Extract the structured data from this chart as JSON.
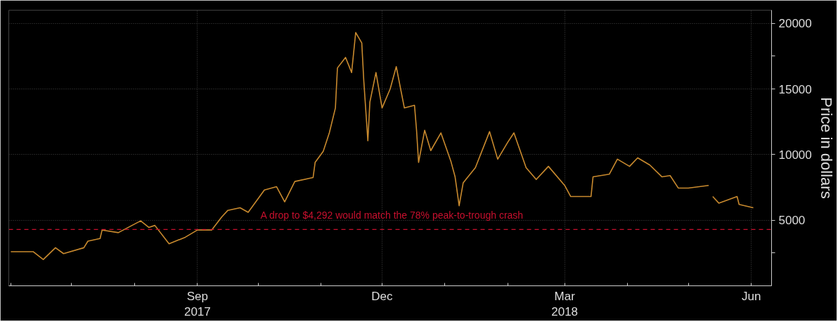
{
  "chart_data": {
    "type": "line",
    "ylabel": "Price in dollars",
    "x": [
      "2017-06-01",
      "2017-06-12",
      "2017-06-17",
      "2017-06-23",
      "2017-06-27",
      "2017-07-07",
      "2017-07-09",
      "2017-07-15",
      "2017-07-16",
      "2017-07-24",
      "2017-08-04",
      "2017-08-08",
      "2017-08-11",
      "2017-08-18",
      "2017-08-26",
      "2017-09-01",
      "2017-09-08",
      "2017-09-13",
      "2017-09-16",
      "2017-09-22",
      "2017-09-26",
      "2017-10-04",
      "2017-10-10",
      "2017-10-14",
      "2017-10-19",
      "2017-10-28",
      "2017-10-29",
      "2017-11-02",
      "2017-11-05",
      "2017-11-08",
      "2017-11-09",
      "2017-11-13",
      "2017-11-16",
      "2017-11-18",
      "2017-11-21",
      "2017-11-22",
      "2017-11-24",
      "2017-11-25",
      "2017-11-28",
      "2017-12-01",
      "2017-12-05",
      "2017-12-08",
      "2017-12-12",
      "2017-12-17",
      "2017-12-18",
      "2017-12-19",
      "2017-12-22",
      "2017-12-25",
      "2017-12-30",
      "2018-01-04",
      "2018-01-06",
      "2018-01-08",
      "2018-01-10",
      "2018-01-16",
      "2018-01-23",
      "2018-01-27",
      "2018-02-01",
      "2018-02-04",
      "2018-02-10",
      "2018-02-15",
      "2018-02-21",
      "2018-03-01",
      "2018-03-04",
      "2018-03-10",
      "2018-03-14",
      "2018-03-15",
      "2018-03-23",
      "2018-03-27",
      "2018-04-02",
      "2018-04-06",
      "2018-04-12",
      "2018-04-18",
      "2018-04-22",
      "2018-04-26",
      "2018-05-01",
      "2018-05-11",
      "2018-05-12",
      "2018-05-13",
      "2018-05-16",
      "2018-05-25",
      "2018-05-26",
      "2018-06-02"
    ],
    "series": [
      {
        "color": "#c98a2e",
        "values": [
          2600,
          2600,
          2000,
          2900,
          2450,
          2900,
          3400,
          3600,
          4250,
          4050,
          4950,
          4450,
          4600,
          3200,
          3700,
          4250,
          4250,
          5250,
          5750,
          5950,
          5600,
          7300,
          7550,
          6400,
          7950,
          8250,
          9400,
          10250,
          11650,
          13550,
          16600,
          17400,
          16250,
          19300,
          18500,
          15600,
          11050,
          14000,
          16250,
          13550,
          15000,
          16700,
          13550,
          13750,
          11850,
          9400,
          11850,
          10300,
          11650,
          9450,
          8300,
          6100,
          7850,
          9000,
          11750,
          9650,
          10950,
          11650,
          9000,
          8100,
          9100,
          7650,
          6800,
          6800,
          6800,
          8300,
          8500,
          9650,
          9100,
          9750,
          9200,
          8300,
          8400,
          7450,
          7450,
          7650,
          null,
          6800,
          6300,
          6800,
          6200,
          5950
        ]
      }
    ],
    "xlim": [
      "2017-05-31",
      "2018-06-11"
    ],
    "xticks": [
      {
        "value": "2017-06-01",
        "label": null
      },
      {
        "value": "2017-07-01",
        "label": null
      },
      {
        "value": "2017-08-01",
        "label": null
      },
      {
        "value": "2017-09-01",
        "label": "Sep\n2017"
      },
      {
        "value": "2017-10-01",
        "label": null
      },
      {
        "value": "2017-11-01",
        "label": null
      },
      {
        "value": "2017-12-01",
        "label": "Dec"
      },
      {
        "value": "2018-01-01",
        "label": null
      },
      {
        "value": "2018-02-01",
        "label": null
      },
      {
        "value": "2018-03-01",
        "label": "Mar\n2018"
      },
      {
        "value": "2018-04-01",
        "label": null
      },
      {
        "value": "2018-05-01",
        "label": null
      },
      {
        "value": "2018-06-01",
        "label": "Jun"
      }
    ],
    "ylim": [
      0,
      21000
    ],
    "yticks": [
      {
        "value": 2500,
        "label": null
      },
      5000,
      10000,
      15000,
      {
        "value": 17500,
        "label": null
      },
      20000
    ],
    "grid": true,
    "ref_lines": [
      {
        "axis": "y",
        "value": 4292,
        "label": "A drop to $4,292 would match the 78% peak-to-trough crash",
        "color": "#c8102e",
        "line_style": "dashed"
      }
    ]
  }
}
